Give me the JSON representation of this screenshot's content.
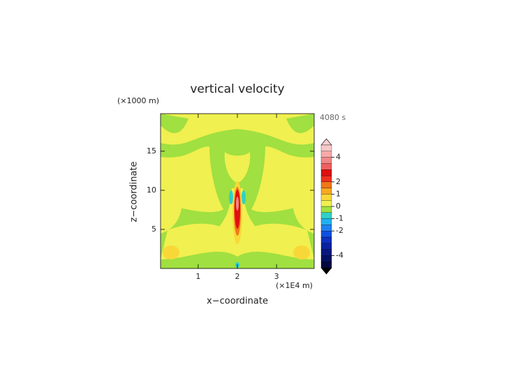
{
  "chart_data": {
    "type": "contour",
    "title": "vertical velocity",
    "y_unit": "(×1000 m)",
    "time_label": "4080 s",
    "ylabel": "z−coordinate",
    "xlabel": "x−coordinate",
    "x_unit": "(×1E4 m)",
    "xlim": [
      0.04,
      3.96
    ],
    "xticks": [
      1,
      2,
      3
    ],
    "ylim": [
      0,
      19.8
    ],
    "yticks": [
      5,
      10,
      15
    ],
    "colorbar": {
      "levels": [
        -5,
        -4.5,
        -4,
        -3.5,
        -3,
        -2.5,
        -2,
        -1.5,
        -1,
        -0.5,
        0,
        0.5,
        1,
        1.5,
        2,
        2.5,
        3,
        3.5,
        4,
        4.5,
        5
      ],
      "colors": [
        "#020840",
        "#041060",
        "#081880",
        "#0a22a0",
        "#1030c0",
        "#1050e0",
        "#2080f0",
        "#20b0f0",
        "#30d0c8",
        "#a0e040",
        "#f0f050",
        "#f8d838",
        "#f8a820",
        "#f07818",
        "#f03020",
        "#e01010",
        "#f06060",
        "#f08888",
        "#f8a8a8",
        "#f8c8c8"
      ],
      "ticks": [
        4,
        2,
        1,
        0,
        -1,
        -2,
        -4
      ]
    }
  }
}
